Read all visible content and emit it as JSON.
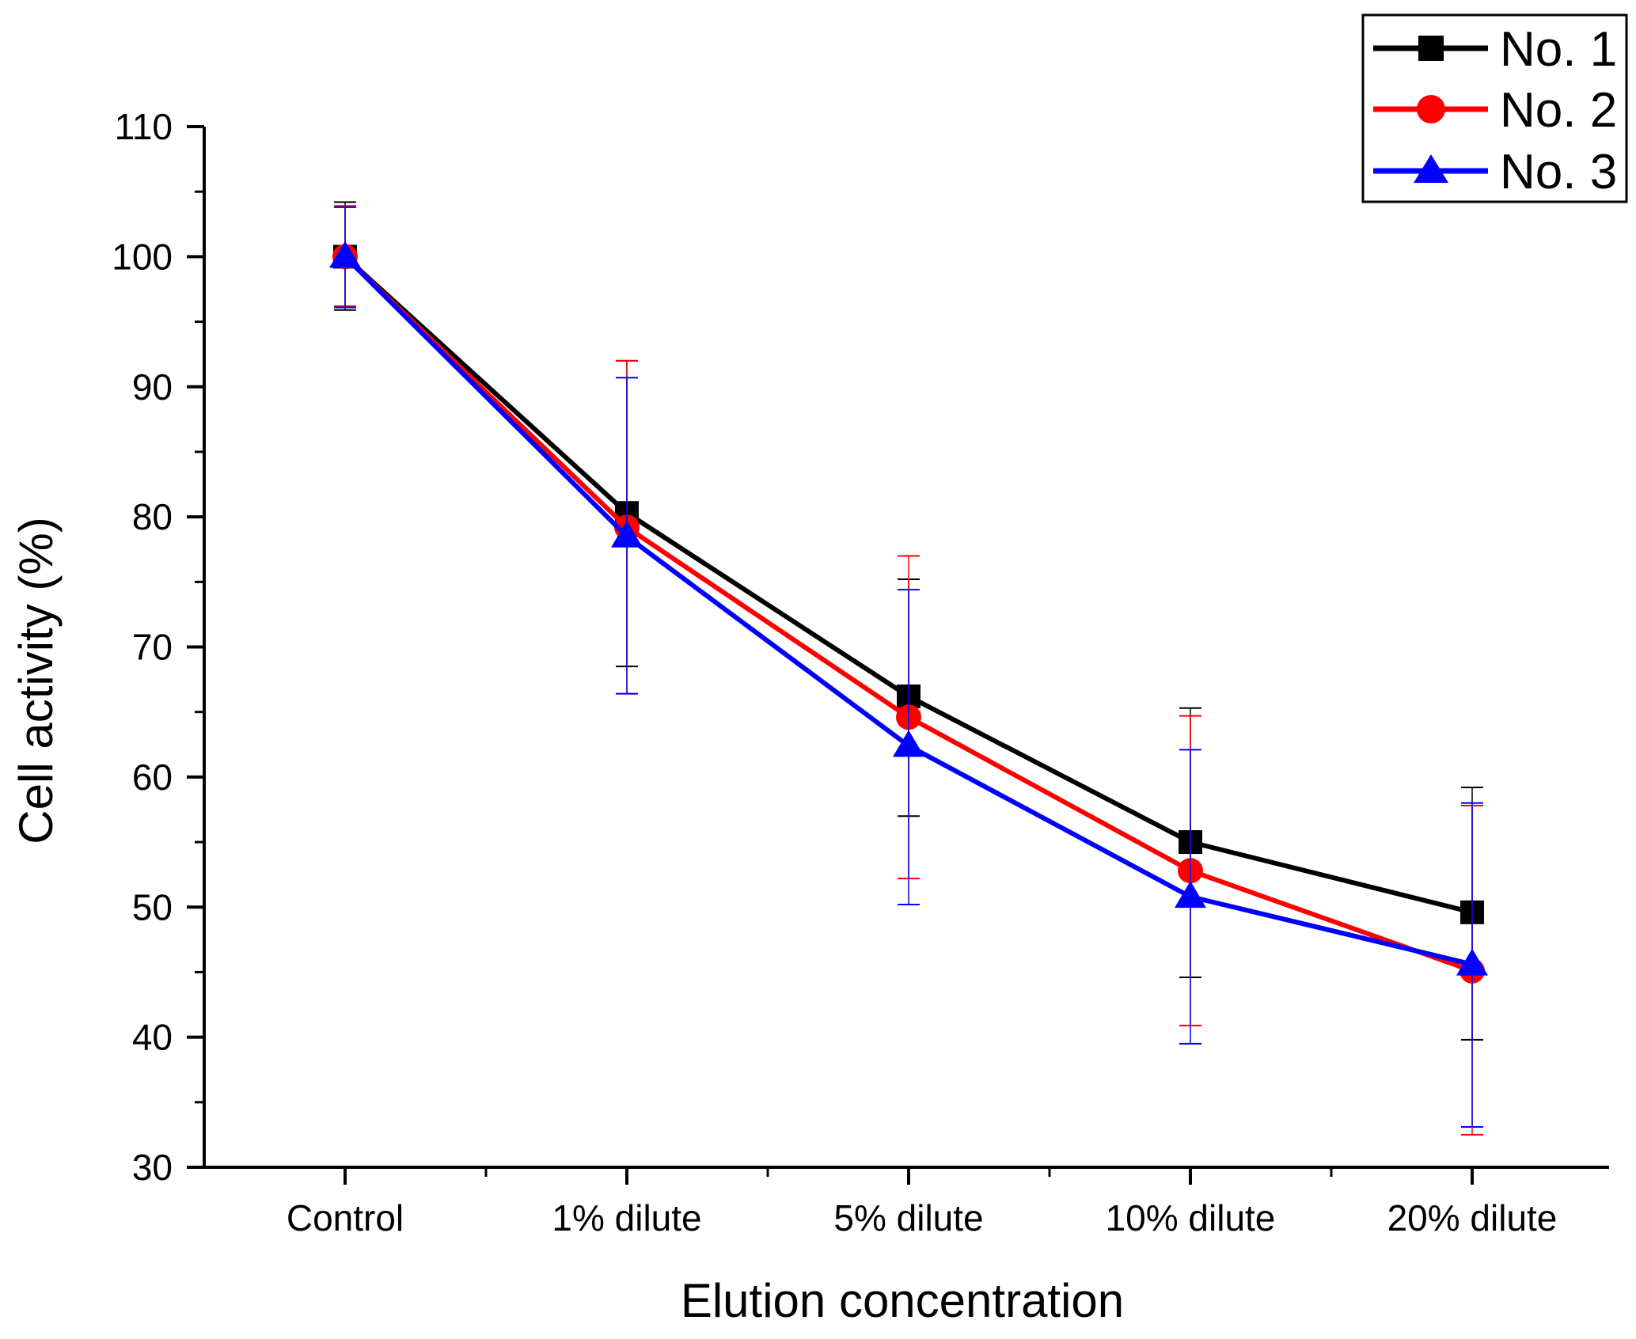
{
  "chart_data": {
    "type": "line",
    "title": "",
    "xlabel": "Elution concentration",
    "ylabel": "Cell activity (%)",
    "categories": [
      "Control",
      "1% dilute",
      "5% dilute",
      "10% dilute",
      "20% dilute"
    ],
    "ylim": [
      30,
      110
    ],
    "yticks": [
      30,
      40,
      50,
      60,
      70,
      80,
      90,
      100,
      110
    ],
    "grid": false,
    "legend_position": "top-right",
    "series": [
      {
        "name": "No. 1",
        "color": "#000000",
        "marker": "square",
        "values": [
          100.0,
          80.3,
          66.2,
          55.0,
          49.6
        ],
        "error_low": [
          95.9,
          68.5,
          57.0,
          44.6,
          39.8
        ],
        "error_high": [
          104.2,
          92.0,
          75.2,
          65.3,
          59.2
        ]
      },
      {
        "name": "No. 2",
        "color": "#ff0000",
        "marker": "circle",
        "values": [
          100.0,
          79.2,
          64.6,
          52.8,
          45.1
        ],
        "error_low": [
          96.2,
          66.4,
          52.2,
          40.9,
          32.5
        ],
        "error_high": [
          103.9,
          92.0,
          77.0,
          64.7,
          57.8
        ]
      },
      {
        "name": "No. 3",
        "color": "#0000ff",
        "marker": "triangle",
        "values": [
          100.0,
          78.5,
          62.4,
          50.8,
          45.6
        ],
        "error_low": [
          96.1,
          66.4,
          50.2,
          39.5,
          33.1
        ],
        "error_high": [
          103.8,
          90.7,
          74.4,
          62.1,
          58.0
        ]
      }
    ]
  }
}
